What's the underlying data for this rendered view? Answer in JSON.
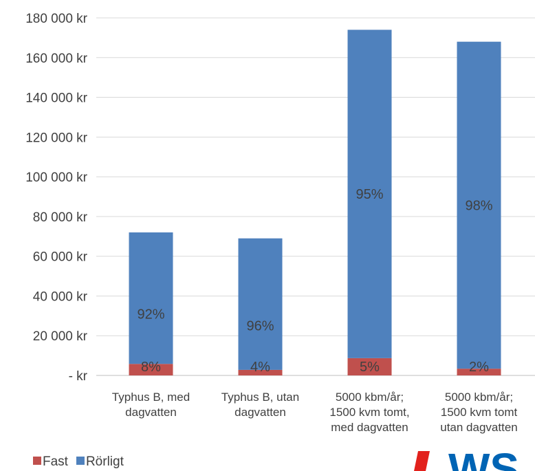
{
  "chart_data": {
    "type": "bar",
    "stacked": true,
    "categories": [
      [
        "Typhus B, med",
        "dagvatten"
      ],
      [
        "Typhus B, utan",
        "dagvatten"
      ],
      [
        "5000 kbm/år;",
        "1500 kvm tomt,",
        "med dagvatten"
      ],
      [
        "5000 kbm/år;",
        "1500 kvm tomt",
        "utan dagvatten"
      ]
    ],
    "series": [
      {
        "name": "Fast",
        "color": "#c0504d",
        "values": [
          5800,
          2800,
          8700,
          3400
        ],
        "labels": [
          "8%",
          "4%",
          "5%",
          "2%"
        ]
      },
      {
        "name": "Rörligt",
        "color": "#4f81bd",
        "values": [
          66200,
          66200,
          165300,
          164600
        ],
        "labels": [
          "92%",
          "96%",
          "95%",
          "98%"
        ]
      }
    ],
    "y_ticks": [
      "-   kr",
      "20 000 kr",
      "40 000 kr",
      "60 000 kr",
      "80 000 kr",
      "100 000 kr",
      "120 000 kr",
      "140 000 kr",
      "160 000 kr",
      "180 000 kr"
    ],
    "ylim": [
      0,
      180000
    ],
    "grid": true,
    "legend_position": "bottom-left"
  },
  "colors": {
    "grid": "#d9d9d9",
    "axis": "#bfbfbf",
    "text": "#404040",
    "logo_red": "#e2211c",
    "logo_blue": "#0064b4"
  },
  "logo": {
    "text": "WS"
  }
}
